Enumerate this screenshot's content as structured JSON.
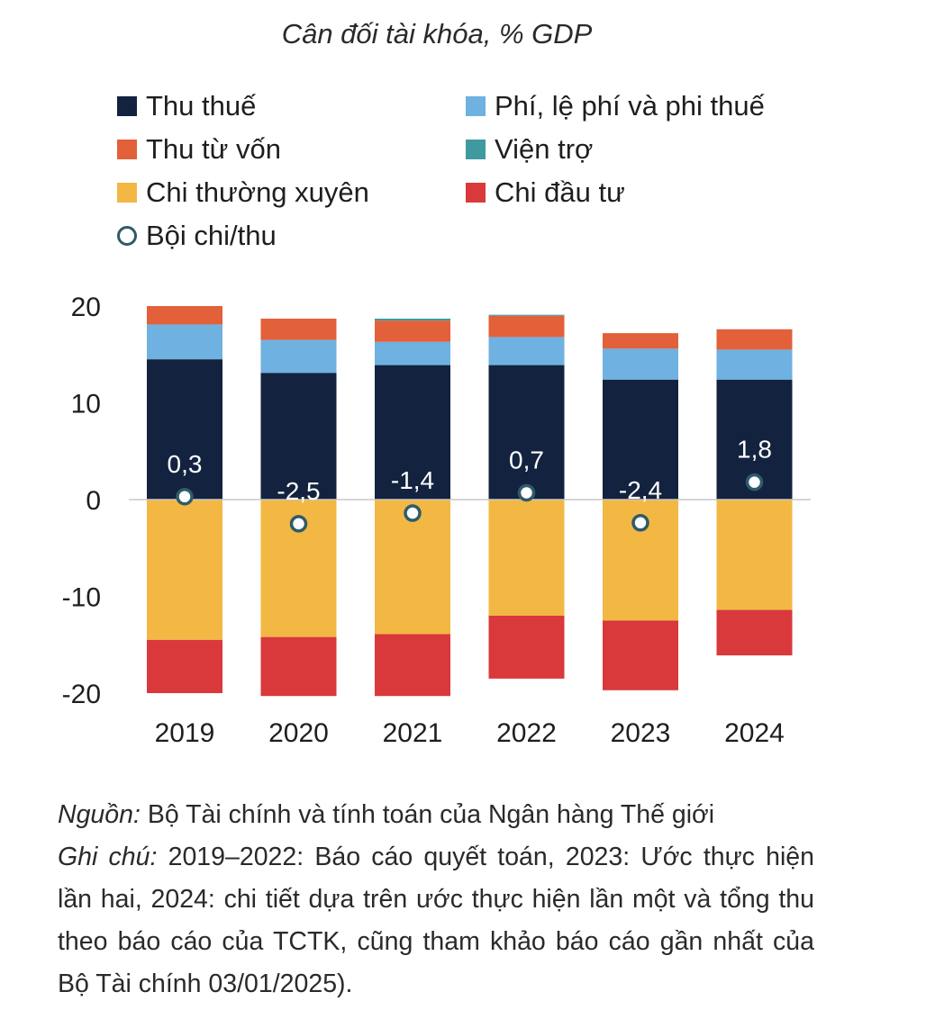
{
  "chart_data": {
    "type": "bar",
    "stacked": true,
    "title": "Cân đối tài khóa, % GDP",
    "categories": [
      "2019",
      "2020",
      "2021",
      "2022",
      "2023",
      "2024"
    ],
    "ylim": [
      -20,
      20
    ],
    "yticks": [
      20,
      10,
      0,
      -10,
      -20
    ],
    "series": [
      {
        "name": "Thu thuế",
        "color": "#13233f",
        "values": [
          14.5,
          13.1,
          13.9,
          13.9,
          12.4,
          12.4
        ]
      },
      {
        "name": "Phí, lệ phí và phi thuế",
        "color": "#6fb1e0",
        "values": [
          3.6,
          3.4,
          2.4,
          2.9,
          3.2,
          3.1
        ]
      },
      {
        "name": "Thu từ vốn",
        "color": "#e2603a",
        "values": [
          1.9,
          2.2,
          2.2,
          2.2,
          1.6,
          2.1
        ]
      },
      {
        "name": "Viện trợ",
        "color": "#3f9aa0",
        "values": [
          0.0,
          0.0,
          0.2,
          0.1,
          0.0,
          0.0
        ]
      },
      {
        "name": "Chi thường xuyên",
        "color": "#f2b843",
        "values": [
          -14.5,
          -14.2,
          -13.9,
          -12.0,
          -12.5,
          -11.4
        ]
      },
      {
        "name": "Chi đầu tư",
        "color": "#d9393b",
        "values": [
          -5.5,
          -6.1,
          -6.4,
          -6.5,
          -7.2,
          -4.7
        ]
      },
      {
        "name": "Bội chi/thu",
        "type": "point",
        "color": "#2f5b6b",
        "values": [
          0.3,
          -2.5,
          -1.4,
          0.7,
          -2.4,
          1.8
        ]
      }
    ],
    "point_labels": [
      "0,3",
      "-2,5",
      "-1,4",
      "0,7",
      "-2,4",
      "1,8"
    ]
  },
  "legend": {
    "items": [
      {
        "label": "Thu thuế",
        "color": "#13233f",
        "shape": "square"
      },
      {
        "label": "Phí, lệ phí và phi thuế",
        "color": "#6fb1e0",
        "shape": "square"
      },
      {
        "label": "Thu từ vốn",
        "color": "#e2603a",
        "shape": "square"
      },
      {
        "label": "Viện trợ",
        "color": "#3f9aa0",
        "shape": "square"
      },
      {
        "label": "Chi thường xuyên",
        "color": "#f2b843",
        "shape": "square"
      },
      {
        "label": "Chi đầu tư",
        "color": "#d9393b",
        "shape": "square"
      },
      {
        "label": "Bội chi/thu",
        "color": "#2f5b6b",
        "shape": "circle"
      }
    ]
  },
  "notes": {
    "source_label": "Nguồn:",
    "source_text": " Bộ Tài chính và tính toán của Ngân hàng Thế giới",
    "note_label": "Ghi chú:",
    "note_text": " 2019–2022: Báo cáo quyết toán, 2023: Ước thực hiện lần hai, 2024: chi tiết dựa trên ước thực hiện lần một và tổng thu theo báo cáo của TCTK, cũng tham khảo báo cáo gần nhất của Bộ Tài chính 03/01/2025)."
  }
}
